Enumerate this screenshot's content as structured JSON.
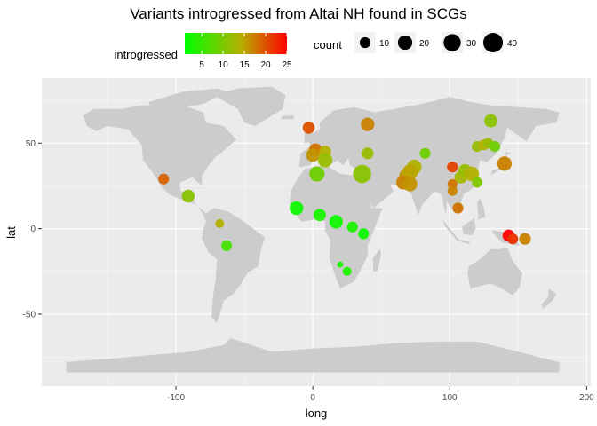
{
  "chart_data": {
    "type": "scatter",
    "title": "Variants introgressed from Altai NH found in SCGs",
    "xlabel": "long",
    "ylabel": "lat",
    "xlim": [
      -198,
      203
    ],
    "ylim": [
      -92,
      88
    ],
    "x_ticks": [
      -100,
      0,
      100,
      200
    ],
    "y_ticks": [
      -50,
      0,
      50
    ],
    "x_tick_labels": [
      "-100",
      "0",
      "100",
      "200"
    ],
    "y_tick_labels": [
      "-50",
      "0",
      "50"
    ],
    "grid": true,
    "background": "world-map",
    "panel_color": "#ebebeb",
    "land_color": "#cccccc",
    "color_legend": {
      "title": "introgressed",
      "range": [
        1,
        25
      ],
      "ticks": [
        5,
        10,
        15,
        20,
        25
      ],
      "tick_labels": [
        "5",
        "10",
        "15",
        "20",
        "25"
      ],
      "low_color": "#00ff00",
      "high_color": "#ff0000"
    },
    "size_legend": {
      "title": "count",
      "values": [
        10,
        20,
        30,
        40
      ],
      "labels": [
        "10",
        "20",
        "30",
        "40"
      ]
    },
    "legend_position": "top",
    "points": [
      {
        "x": -109,
        "y": 29,
        "count": 10,
        "introgressed": 19
      },
      {
        "x": -91,
        "y": 19,
        "count": 15,
        "introgressed": 11
      },
      {
        "x": -68,
        "y": 3,
        "count": 6,
        "introgressed": 14
      },
      {
        "x": -63,
        "y": -10,
        "count": 10,
        "introgressed": 6
      },
      {
        "x": -12,
        "y": 12,
        "count": 18,
        "introgressed": 2
      },
      {
        "x": 5,
        "y": 8,
        "count": 14,
        "introgressed": 3
      },
      {
        "x": 17,
        "y": 4,
        "count": 17,
        "introgressed": 2
      },
      {
        "x": 29,
        "y": 1,
        "count": 10,
        "introgressed": 3
      },
      {
        "x": 37,
        "y": -3,
        "count": 10,
        "introgressed": 2
      },
      {
        "x": 20,
        "y": -21,
        "count": 2,
        "introgressed": 3
      },
      {
        "x": 25,
        "y": -25,
        "count": 6,
        "introgressed": 3
      },
      {
        "x": -3,
        "y": 59,
        "count": 13,
        "introgressed": 20
      },
      {
        "x": 2,
        "y": 46,
        "count": 16,
        "introgressed": 18
      },
      {
        "x": 0,
        "y": 43,
        "count": 17,
        "introgressed": 16
      },
      {
        "x": 9,
        "y": 45,
        "count": 13,
        "introgressed": 14
      },
      {
        "x": 9,
        "y": 40,
        "count": 20,
        "introgressed": 12
      },
      {
        "x": 3,
        "y": 32,
        "count": 23,
        "introgressed": 9
      },
      {
        "x": 36,
        "y": 32,
        "count": 34,
        "introgressed": 11
      },
      {
        "x": 40,
        "y": 61,
        "count": 17,
        "introgressed": 17
      },
      {
        "x": 40,
        "y": 44,
        "count": 12,
        "introgressed": 12
      },
      {
        "x": 68,
        "y": 31,
        "count": 16,
        "introgressed": 16
      },
      {
        "x": 74,
        "y": 36,
        "count": 21,
        "introgressed": 14
      },
      {
        "x": 71,
        "y": 33,
        "count": 24,
        "introgressed": 15
      },
      {
        "x": 66,
        "y": 27,
        "count": 19,
        "introgressed": 17
      },
      {
        "x": 71,
        "y": 26,
        "count": 20,
        "introgressed": 16
      },
      {
        "x": 82,
        "y": 44,
        "count": 10,
        "introgressed": 9
      },
      {
        "x": 102,
        "y": 36,
        "count": 10,
        "introgressed": 21
      },
      {
        "x": 102,
        "y": 26,
        "count": 8,
        "introgressed": 18
      },
      {
        "x": 102,
        "y": 22,
        "count": 8,
        "introgressed": 17
      },
      {
        "x": 106,
        "y": 12,
        "count": 10,
        "introgressed": 18
      },
      {
        "x": 108,
        "y": 30,
        "count": 14,
        "introgressed": 13
      },
      {
        "x": 111,
        "y": 34,
        "count": 15,
        "introgressed": 12
      },
      {
        "x": 116,
        "y": 32,
        "count": 21,
        "introgressed": 14
      },
      {
        "x": 120,
        "y": 27,
        "count": 9,
        "introgressed": 10
      },
      {
        "x": 120,
        "y": 48,
        "count": 10,
        "introgressed": 12
      },
      {
        "x": 125,
        "y": 49,
        "count": 10,
        "introgressed": 14
      },
      {
        "x": 128,
        "y": 50,
        "count": 9,
        "introgressed": 12
      },
      {
        "x": 130,
        "y": 63,
        "count": 16,
        "introgressed": 11
      },
      {
        "x": 133,
        "y": 48,
        "count": 10,
        "introgressed": 9
      },
      {
        "x": 140,
        "y": 38,
        "count": 20,
        "introgressed": 17
      },
      {
        "x": 143,
        "y": -4,
        "count": 13,
        "introgressed": 25
      },
      {
        "x": 146,
        "y": -6,
        "count": 10,
        "introgressed": 22
      },
      {
        "x": 155,
        "y": -6,
        "count": 12,
        "introgressed": 17
      }
    ]
  }
}
